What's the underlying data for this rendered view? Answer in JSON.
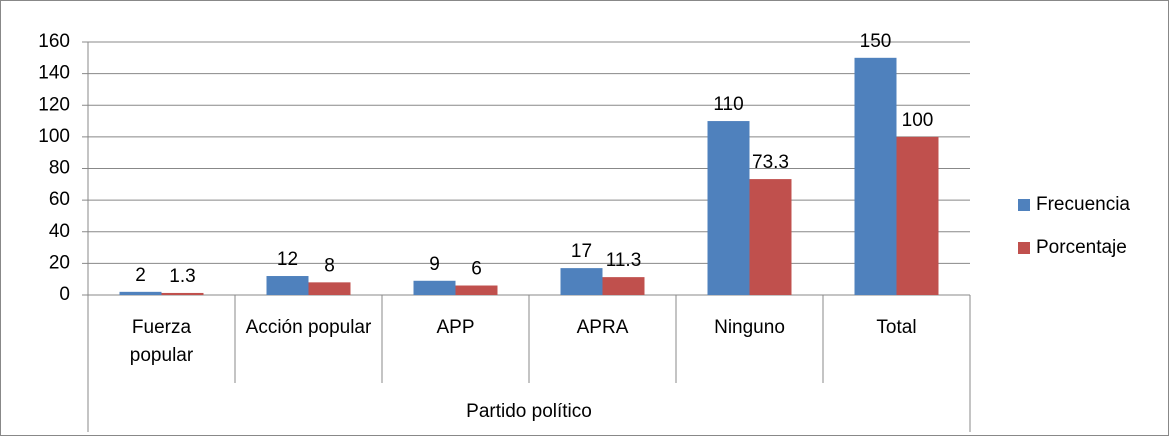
{
  "chart_data": {
    "type": "bar",
    "x_label": "Partido político",
    "categories": [
      "Fuerza popular",
      "Acción popular",
      "APP",
      "APRA",
      "Ninguno",
      "Total"
    ],
    "series": [
      {
        "name": "Frecuencia",
        "color": "#4f81bd",
        "values": [
          2,
          12,
          9,
          17,
          110,
          150
        ]
      },
      {
        "name": "Porcentaje",
        "color": "#c0504d",
        "values": [
          1.3,
          8,
          6,
          11.3,
          73.3,
          100
        ]
      }
    ],
    "ylim": [
      0,
      160
    ],
    "yticks": [
      0,
      20,
      40,
      60,
      80,
      100,
      120,
      140,
      160
    ],
    "grid": true,
    "legend": "right"
  }
}
